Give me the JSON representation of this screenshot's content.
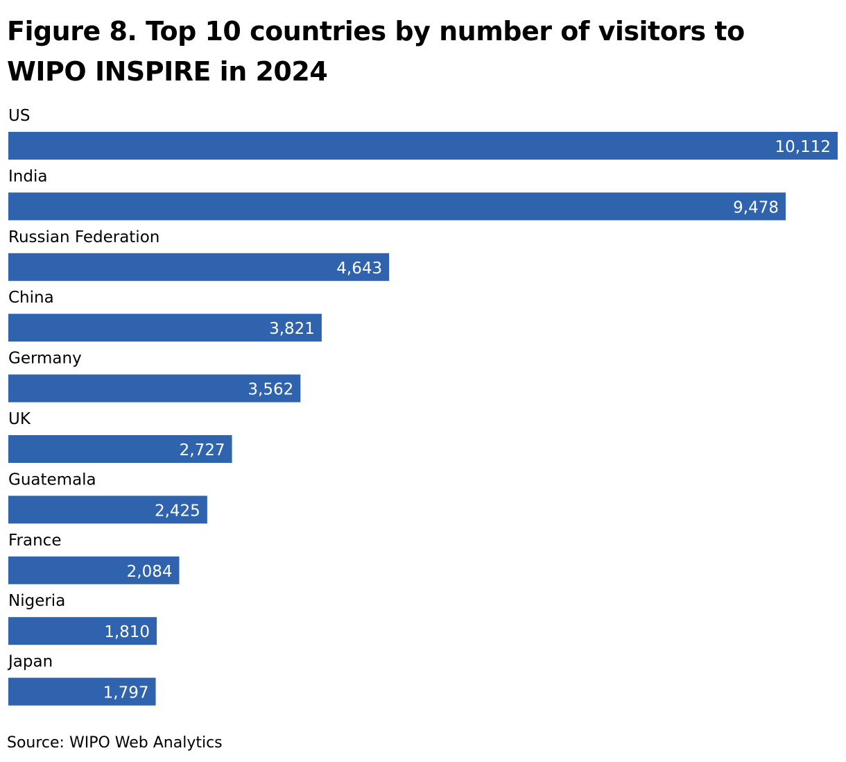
{
  "chart_data": {
    "type": "bar",
    "orientation": "horizontal",
    "title": "Figure 8. Top 10 countries by number of visitors to WIPO INSPIRE in 2024",
    "categories": [
      "US",
      "India",
      "Russian Federation",
      "China",
      "Germany",
      "UK",
      "Guatemala",
      "France",
      "Nigeria",
      "Japan"
    ],
    "values": [
      10112,
      9478,
      4643,
      3821,
      3562,
      2727,
      2425,
      2084,
      1810,
      1797
    ],
    "value_labels": [
      "10,112",
      "9,478",
      "4,643",
      "3,821",
      "3,562",
      "2,727",
      "2,425",
      "2,084",
      "1,810",
      "1,797"
    ],
    "bar_color": "#3063AE",
    "data_labels": "inside-end",
    "grid": false,
    "legend": "none",
    "xlim": [
      0,
      10112
    ]
  },
  "source": "Source: WIPO Web Analytics"
}
